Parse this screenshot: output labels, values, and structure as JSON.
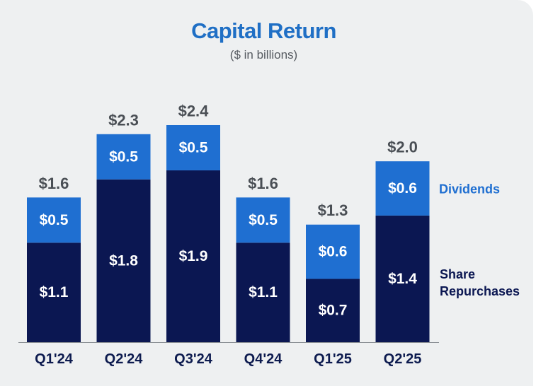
{
  "title": "Capital Return",
  "subtitle": "($ in billions)",
  "colors": {
    "dividends": "#1f6fd1",
    "share_repurchases": "#0b1752",
    "title": "#1f6fc5",
    "axis": "#4a4f55"
  },
  "chart_data": {
    "type": "bar",
    "stacked": true,
    "title": "Capital Return",
    "subtitle": "($ in billions)",
    "categories": [
      "Q1'24",
      "Q2'24",
      "Q3'24",
      "Q4'24",
      "Q1'25",
      "Q2'25"
    ],
    "series": [
      {
        "name": "Share Repurchases",
        "values": [
          1.1,
          1.8,
          1.9,
          1.1,
          0.7,
          1.4
        ],
        "labels": [
          "$1.1",
          "$1.8",
          "$1.9",
          "$1.1",
          "$0.7",
          "$1.4"
        ]
      },
      {
        "name": "Dividends",
        "values": [
          0.5,
          0.5,
          0.5,
          0.5,
          0.6,
          0.6
        ],
        "labels": [
          "$0.5",
          "$0.5",
          "$0.5",
          "$0.5",
          "$0.6",
          "$0.6"
        ]
      }
    ],
    "totals": [
      1.6,
      2.3,
      2.4,
      1.6,
      1.3,
      2.0
    ],
    "total_labels": [
      "$1.6",
      "$2.3",
      "$2.4",
      "$1.6",
      "$1.3",
      "$2.0"
    ],
    "legend": [
      "Dividends",
      "Share Repurchases"
    ],
    "legend_position": "right",
    "ylim": [
      0,
      2.4
    ],
    "grid": false
  }
}
